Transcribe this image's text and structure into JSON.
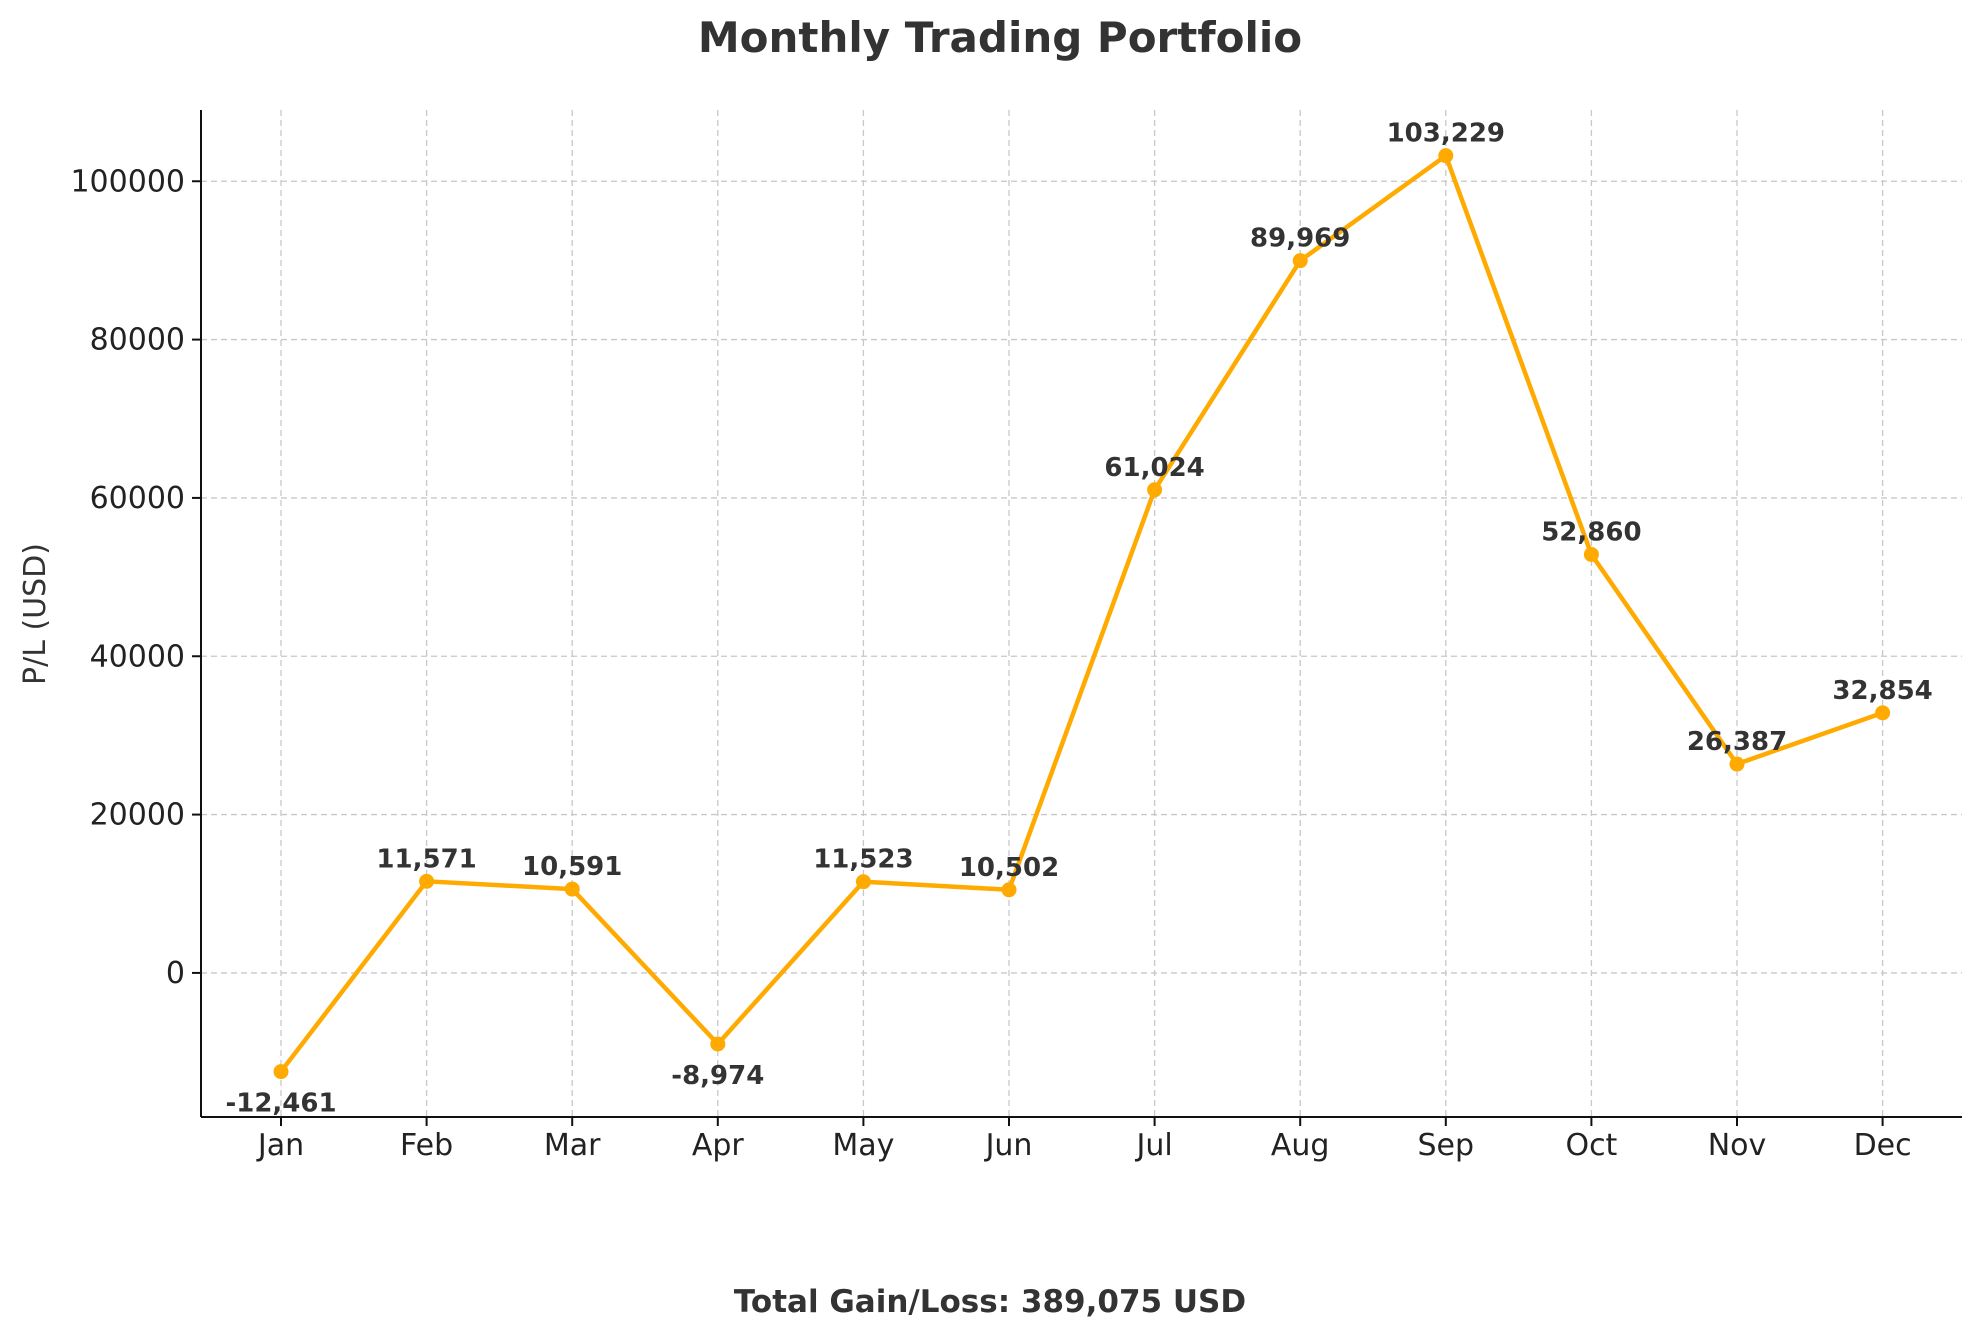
{
  "chart_data": {
    "type": "line",
    "title": "Monthly Trading Portfolio",
    "xlabel": "",
    "ylabel": "P/L (USD)",
    "categories": [
      "Jan",
      "Feb",
      "Mar",
      "Apr",
      "May",
      "Jun",
      "Jul",
      "Aug",
      "Sep",
      "Oct",
      "Nov",
      "Dec"
    ],
    "values": [
      -12461,
      11571,
      10591,
      -8974,
      11523,
      10502,
      61024,
      89969,
      103229,
      52860,
      26387,
      32854
    ],
    "data_labels": [
      "-12,461",
      "11,571",
      "10,591",
      "-8,974",
      "11,523",
      "10,502",
      "61,024",
      "89,969",
      "103,229",
      "52,860",
      "26,387",
      "32,854"
    ],
    "yticks": [
      0,
      20000,
      40000,
      60000,
      80000,
      100000
    ],
    "ylim": [
      -18200,
      109000
    ],
    "grid": true,
    "line_color": "#FFAA00",
    "footer": "Total Gain/Loss: 389,075 USD"
  }
}
